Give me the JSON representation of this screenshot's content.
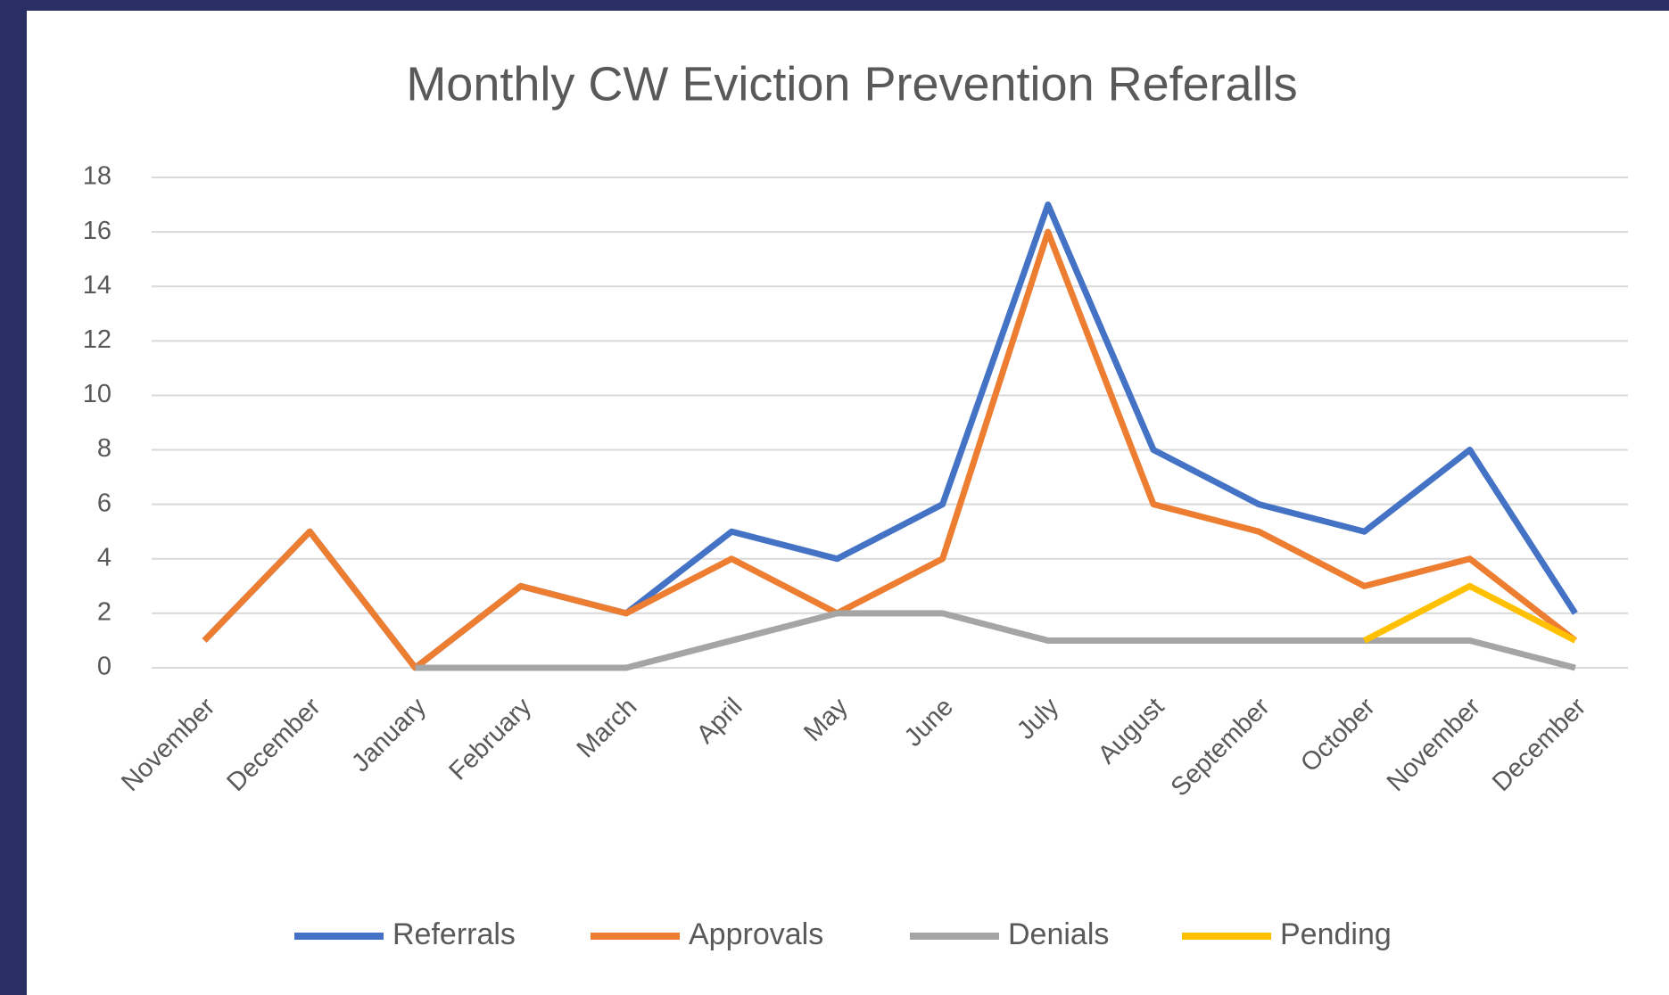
{
  "chart_data": {
    "type": "line",
    "title": "Monthly CW Eviction Prevention Referalls",
    "categories": [
      "November",
      "December",
      "January",
      "February",
      "March",
      "April",
      "May",
      "June",
      "July",
      "August",
      "September",
      "October",
      "November",
      "December"
    ],
    "series": [
      {
        "name": "Referrals",
        "color": "#4472c4",
        "values": [
          1,
          5,
          0,
          3,
          2,
          5,
          4,
          6,
          17,
          8,
          6,
          5,
          8,
          2
        ]
      },
      {
        "name": "Approvals",
        "color": "#ed7d31",
        "values": [
          1,
          5,
          0,
          3,
          2,
          4,
          2,
          4,
          16,
          6,
          5,
          3,
          4,
          1
        ]
      },
      {
        "name": "Denials",
        "color": "#a5a5a5",
        "values": [
          null,
          null,
          0,
          0,
          0,
          1,
          2,
          2,
          1,
          1,
          1,
          1,
          1,
          0
        ]
      },
      {
        "name": "Pending",
        "color": "#ffc000",
        "values": [
          null,
          null,
          null,
          null,
          null,
          null,
          null,
          null,
          null,
          null,
          null,
          1,
          3,
          1
        ]
      }
    ],
    "ylim": [
      0,
      18
    ],
    "yticks": [
      0,
      2,
      4,
      6,
      8,
      10,
      12,
      14,
      16,
      18
    ],
    "grid": true,
    "legend": "bottom"
  }
}
